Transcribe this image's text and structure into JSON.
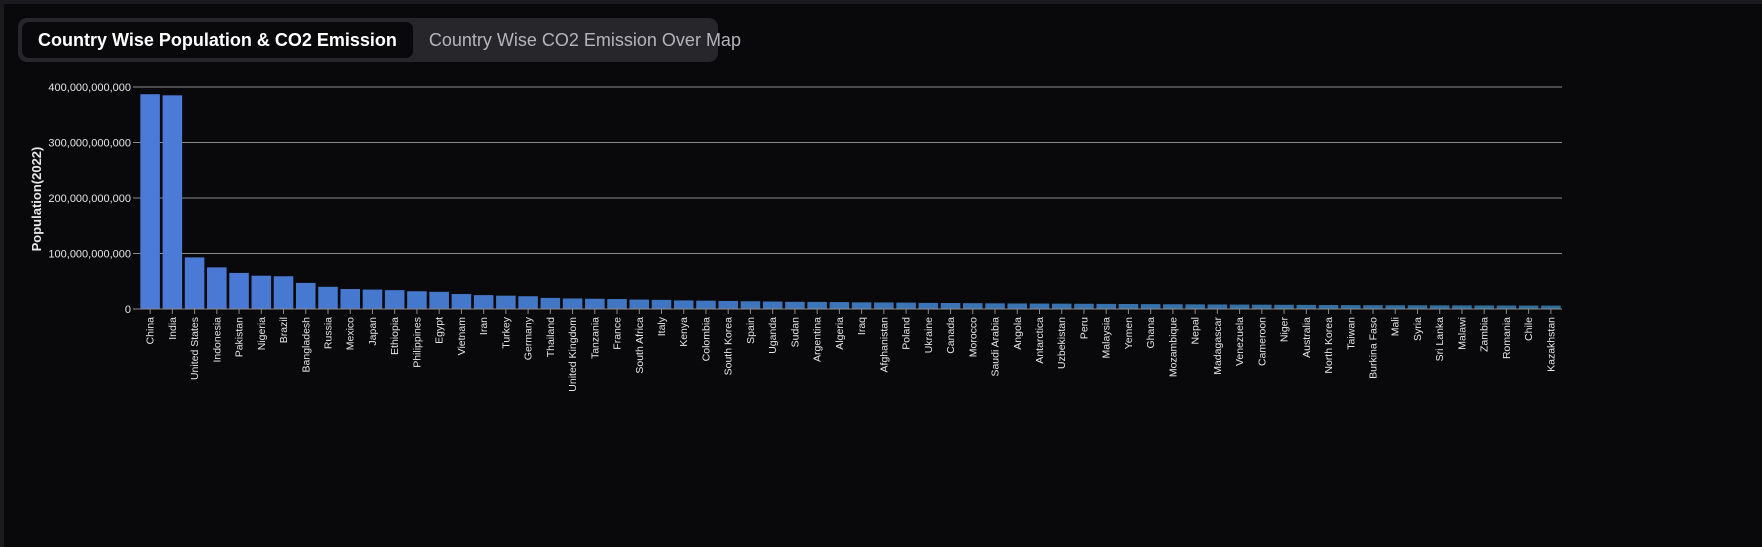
{
  "tabs": [
    {
      "label": "Country Wise Population & CO2 Emission",
      "active": true
    },
    {
      "label": "Country Wise CO2 Emission Over Map",
      "active": false
    }
  ],
  "colors": {
    "bar_start": "#4b7ad8",
    "bar_end": "#2e6f9a",
    "grid": "#8a8a8a",
    "tick_text": "#e6e6e6"
  },
  "chart_data": {
    "type": "bar",
    "xlabel": "",
    "ylabel": "Population(2022)",
    "ylim": [
      0,
      400000000000
    ],
    "yticks": [
      0,
      100000000000,
      200000000000,
      300000000000,
      400000000000
    ],
    "ytick_labels": [
      "0",
      "100,000,000,000",
      "200,000,000,000",
      "300,000,000,000",
      "400,000,000,000"
    ],
    "grid": true,
    "categories": [
      "China",
      "India",
      "United States",
      "Indonesia",
      "Pakistan",
      "Nigeria",
      "Brazil",
      "Bangladesh",
      "Russia",
      "Mexico",
      "Japan",
      "Ethiopia",
      "Philippines",
      "Egypt",
      "Vietnam",
      "Iran",
      "Turkey",
      "Germany",
      "Thailand",
      "United Kingdom",
      "Tanzania",
      "France",
      "South Africa",
      "Italy",
      "Kenya",
      "Colombia",
      "South Korea",
      "Spain",
      "Uganda",
      "Sudan",
      "Argentina",
      "Algeria",
      "Iraq",
      "Afghanistan",
      "Poland",
      "Ukraine",
      "Canada",
      "Morocco",
      "Saudi Arabia",
      "Angola",
      "Antarctica",
      "Uzbekistan",
      "Peru",
      "Malaysia",
      "Yemen",
      "Ghana",
      "Mozambique",
      "Nepal",
      "Madagascar",
      "Venezuela",
      "Cameroon",
      "Niger",
      "Australia",
      "North Korea",
      "Taiwan",
      "Burkina Faso",
      "Mali",
      "Syria",
      "Sri Lanka",
      "Malawi",
      "Zambia",
      "Romania",
      "Chile",
      "Kazakhstan"
    ],
    "values": [
      387000000000,
      385000000000,
      93000000000,
      75000000000,
      65000000000,
      60000000000,
      59000000000,
      47000000000,
      40000000000,
      36000000000,
      35000000000,
      34000000000,
      32000000000,
      31000000000,
      27000000000,
      25000000000,
      24000000000,
      23000000000,
      20000000000,
      19000000000,
      18500000000,
      18000000000,
      17000000000,
      16500000000,
      15500000000,
      15000000000,
      14500000000,
      14000000000,
      13500000000,
      13000000000,
      12800000000,
      12500000000,
      12000000000,
      11800000000,
      11500000000,
      11000000000,
      10800000000,
      10500000000,
      10200000000,
      10000000000,
      9800000000,
      9600000000,
      9400000000,
      9200000000,
      9000000000,
      8800000000,
      8600000000,
      8400000000,
      8200000000,
      8000000000,
      7800000000,
      7600000000,
      7400000000,
      7200000000,
      7000000000,
      6900000000,
      6800000000,
      6700000000,
      6600000000,
      6500000000,
      6400000000,
      6300000000,
      6200000000,
      6100000000
    ]
  }
}
